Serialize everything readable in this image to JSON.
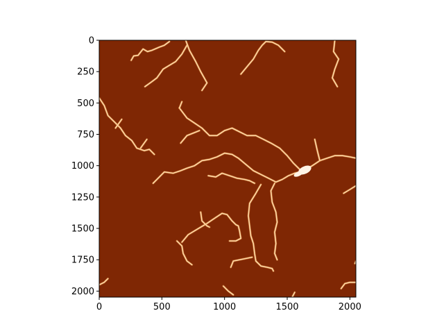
{
  "chart_data": {
    "type": "heatmap",
    "title": "",
    "xlabel": "",
    "ylabel": "",
    "xlim": [
      0,
      2048
    ],
    "ylim": [
      2048,
      0
    ],
    "x_ticks": [
      0,
      500,
      1000,
      1500,
      2000
    ],
    "y_ticks": [
      0,
      250,
      500,
      750,
      1000,
      1250,
      1500,
      1750,
      2000
    ],
    "x_tick_labels": [
      "0",
      "500",
      "1000",
      "1500",
      "2000"
    ],
    "y_tick_labels": [
      "0",
      "250",
      "500",
      "750",
      "1000",
      "1250",
      "1500",
      "1750",
      "2000"
    ],
    "grid": false,
    "colormap": "gist_heat",
    "background_color": "#7f2704",
    "feature_color": "#ffd9a6",
    "feature_core_color": "#fff4e6",
    "features": [
      {
        "name": "branch-top-left",
        "points": [
          [
            255,
            160
          ],
          [
            275,
            125
          ],
          [
            310,
            120
          ],
          [
            350,
            70
          ],
          [
            385,
            90
          ],
          [
            420,
            80
          ],
          [
            480,
            55
          ],
          [
            520,
            40
          ],
          [
            560,
            10
          ]
        ]
      },
      {
        "name": "branch-top-left-2",
        "points": [
          [
            365,
            370
          ],
          [
            420,
            330
          ],
          [
            460,
            300
          ],
          [
            510,
            230
          ],
          [
            560,
            200
          ],
          [
            610,
            170
          ],
          [
            660,
            110
          ],
          [
            700,
            40
          ]
        ]
      },
      {
        "name": "branch-top-center",
        "points": [
          [
            690,
            0
          ],
          [
            720,
            80
          ],
          [
            770,
            170
          ],
          [
            810,
            250
          ],
          [
            860,
            340
          ],
          [
            820,
            400
          ]
        ]
      },
      {
        "name": "branch-top-right-a",
        "points": [
          [
            1130,
            270
          ],
          [
            1180,
            210
          ],
          [
            1230,
            150
          ],
          [
            1270,
            80
          ],
          [
            1300,
            40
          ],
          [
            1330,
            10
          ],
          [
            1380,
            15
          ],
          [
            1430,
            40
          ],
          [
            1480,
            90
          ]
        ]
      },
      {
        "name": "branch-top-right-b",
        "points": [
          [
            1880,
            0
          ],
          [
            1870,
            90
          ],
          [
            1910,
            150
          ],
          [
            1880,
            230
          ],
          [
            1860,
            300
          ],
          [
            1900,
            370
          ]
        ]
      },
      {
        "name": "branch-left",
        "points": [
          [
            0,
            460
          ],
          [
            40,
            520
          ],
          [
            70,
            600
          ],
          [
            120,
            650
          ],
          [
            170,
            700
          ],
          [
            210,
            760
          ],
          [
            260,
            800
          ],
          [
            300,
            860
          ],
          [
            360,
            880
          ],
          [
            400,
            870
          ],
          [
            440,
            910
          ]
        ]
      },
      {
        "name": "branch-left-spur",
        "points": [
          [
            130,
            700
          ],
          [
            180,
            630
          ]
        ]
      },
      {
        "name": "branch-left-spur-2",
        "points": [
          [
            330,
            860
          ],
          [
            380,
            790
          ]
        ]
      },
      {
        "name": "branch-center-a",
        "points": [
          [
            640,
            540
          ],
          [
            700,
            620
          ],
          [
            760,
            660
          ],
          [
            820,
            700
          ],
          [
            880,
            760
          ],
          [
            940,
            760
          ],
          [
            1000,
            720
          ],
          [
            1060,
            700
          ],
          [
            1120,
            730
          ],
          [
            1180,
            760
          ],
          [
            1250,
            760
          ],
          [
            1310,
            790
          ],
          [
            1370,
            820
          ],
          [
            1440,
            860
          ],
          [
            1500,
            920
          ],
          [
            1550,
            980
          ],
          [
            1600,
            1030
          ],
          [
            1640,
            1040
          ]
        ]
      },
      {
        "name": "branch-center-a-spur",
        "points": [
          [
            640,
            540
          ],
          [
            660,
            490
          ]
        ]
      },
      {
        "name": "branch-center-b",
        "points": [
          [
            650,
            820
          ],
          [
            700,
            760
          ],
          [
            750,
            740
          ],
          [
            800,
            720
          ]
        ]
      },
      {
        "name": "branch-long-mid",
        "points": [
          [
            430,
            1140
          ],
          [
            480,
            1090
          ],
          [
            520,
            1050
          ],
          [
            590,
            1060
          ],
          [
            650,
            1040
          ],
          [
            700,
            1020
          ],
          [
            760,
            1000
          ],
          [
            820,
            960
          ],
          [
            880,
            950
          ],
          [
            940,
            930
          ],
          [
            1000,
            900
          ],
          [
            1060,
            910
          ],
          [
            1110,
            940
          ],
          [
            1170,
            990
          ],
          [
            1230,
            1040
          ],
          [
            1290,
            1070
          ],
          [
            1350,
            1100
          ],
          [
            1410,
            1130
          ],
          [
            1460,
            1110
          ],
          [
            1510,
            1080
          ],
          [
            1560,
            1060
          ],
          [
            1600,
            1050
          ],
          [
            1650,
            1030
          ]
        ]
      },
      {
        "name": "branch-mid-lower",
        "points": [
          [
            870,
            1080
          ],
          [
            930,
            1090
          ],
          [
            980,
            1060
          ],
          [
            1040,
            1080
          ],
          [
            1100,
            1100
          ],
          [
            1160,
            1110
          ],
          [
            1200,
            1120
          ],
          [
            1240,
            1140
          ]
        ]
      },
      {
        "name": "main-trunk-right",
        "points": [
          [
            1650,
            1030
          ],
          [
            1700,
            1000
          ],
          [
            1760,
            960
          ],
          [
            1820,
            940
          ],
          [
            1880,
            920
          ],
          [
            1940,
            920
          ],
          [
            2000,
            930
          ],
          [
            2048,
            940
          ]
        ]
      },
      {
        "name": "branch-right-upper",
        "points": [
          [
            1760,
            960
          ],
          [
            1740,
            880
          ],
          [
            1720,
            790
          ]
        ]
      },
      {
        "name": "branch-vertical-a",
        "points": [
          [
            1290,
            1150
          ],
          [
            1250,
            1220
          ],
          [
            1200,
            1300
          ],
          [
            1190,
            1400
          ],
          [
            1200,
            1480
          ],
          [
            1210,
            1560
          ],
          [
            1230,
            1620
          ],
          [
            1240,
            1700
          ],
          [
            1250,
            1760
          ],
          [
            1290,
            1800
          ],
          [
            1340,
            1810
          ],
          [
            1380,
            1820
          ],
          [
            1390,
            1840
          ]
        ]
      },
      {
        "name": "branch-vertical-b",
        "points": [
          [
            1400,
            1140
          ],
          [
            1370,
            1200
          ],
          [
            1380,
            1290
          ],
          [
            1410,
            1370
          ],
          [
            1420,
            1450
          ],
          [
            1400,
            1530
          ],
          [
            1410,
            1620
          ],
          [
            1400,
            1700
          ],
          [
            1420,
            1750
          ]
        ]
      },
      {
        "name": "branch-lower-center",
        "points": [
          [
            660,
            1610
          ],
          [
            710,
            1550
          ],
          [
            760,
            1520
          ],
          [
            810,
            1490
          ],
          [
            860,
            1460
          ],
          [
            920,
            1420
          ],
          [
            980,
            1380
          ],
          [
            1020,
            1390
          ],
          [
            1060,
            1440
          ],
          [
            1090,
            1470
          ],
          [
            1110,
            1480
          ],
          [
            1120,
            1520
          ],
          [
            1130,
            1580
          ],
          [
            1090,
            1600
          ],
          [
            1040,
            1600
          ]
        ]
      },
      {
        "name": "branch-lower-center-2",
        "points": [
          [
            810,
            1370
          ],
          [
            820,
            1440
          ],
          [
            860,
            1480
          ],
          [
            880,
            1490
          ]
        ]
      },
      {
        "name": "branch-lower-left",
        "points": [
          [
            620,
            1600
          ],
          [
            660,
            1640
          ],
          [
            670,
            1700
          ],
          [
            700,
            1760
          ],
          [
            740,
            1790
          ]
        ]
      },
      {
        "name": "branch-bottom-center",
        "points": [
          [
            1050,
            1810
          ],
          [
            1070,
            1760
          ],
          [
            1120,
            1750
          ],
          [
            1170,
            1740
          ],
          [
            1220,
            1730
          ]
        ]
      },
      {
        "name": "branch-bottom-left",
        "points": [
          [
            0,
            1950
          ],
          [
            40,
            1930
          ],
          [
            70,
            1900
          ]
        ]
      },
      {
        "name": "branch-bottom-mid",
        "points": [
          [
            990,
            1960
          ],
          [
            1030,
            2000
          ],
          [
            1070,
            2030
          ]
        ]
      },
      {
        "name": "branch-bottom-right",
        "points": [
          [
            1930,
            1980
          ],
          [
            1960,
            1940
          ],
          [
            2000,
            1930
          ],
          [
            2048,
            1930
          ]
        ]
      },
      {
        "name": "branch-right-mid",
        "points": [
          [
            1950,
            1220
          ],
          [
            2000,
            1190
          ],
          [
            2048,
            1160
          ]
        ]
      },
      {
        "name": "branch-right-low",
        "points": [
          [
            2040,
            1780
          ],
          [
            2048,
            1760
          ]
        ]
      },
      {
        "name": "branch-bottom-far-right",
        "points": [
          [
            1540,
            2048
          ],
          [
            1560,
            2010
          ]
        ]
      }
    ],
    "blobs": [
      {
        "name": "junction-blob-a",
        "cx": 1640,
        "cy": 1035,
        "rx": 55,
        "ry": 30
      },
      {
        "name": "junction-blob-b",
        "cx": 1590,
        "cy": 1065,
        "rx": 40,
        "ry": 18
      }
    ]
  }
}
